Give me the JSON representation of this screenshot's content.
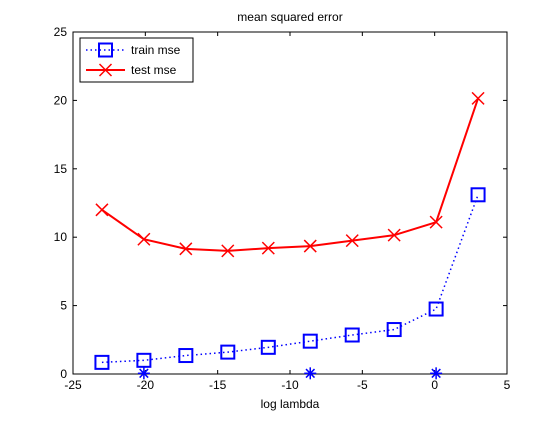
{
  "chart_data": {
    "type": "line",
    "title": "mean squared error",
    "xlabel": "log lambda",
    "ylabel": "",
    "xlim": [
      -25,
      5
    ],
    "ylim": [
      0,
      25
    ],
    "xticks": [
      -25,
      -20,
      -15,
      -10,
      -5,
      0,
      5
    ],
    "yticks": [
      0,
      5,
      10,
      15,
      20,
      25
    ],
    "xtick_labels": [
      "-25",
      "-20",
      "-15",
      "-10",
      "-5",
      "0",
      "5"
    ],
    "ytick_labels": [
      "0",
      "5",
      "10",
      "15",
      "20",
      "25"
    ],
    "grid": false,
    "legend": "top-left",
    "series": [
      {
        "name": "train mse",
        "color": "#0000ff",
        "line_style": "dotted",
        "marker": "square",
        "x": [
          -23.0,
          -20.1,
          -17.2,
          -14.3,
          -11.5,
          -8.6,
          -5.7,
          -2.8,
          0.1,
          3.0
        ],
        "y": [
          0.85,
          1.0,
          1.35,
          1.6,
          1.95,
          2.4,
          2.85,
          3.25,
          4.75,
          13.1
        ]
      },
      {
        "name": "test mse",
        "color": "#ff0000",
        "line_style": "solid",
        "marker": "x",
        "x": [
          -23.0,
          -20.1,
          -17.2,
          -14.3,
          -11.5,
          -8.6,
          -5.7,
          -2.8,
          0.1,
          3.0
        ],
        "y": [
          12.0,
          9.85,
          9.15,
          9.0,
          9.2,
          9.35,
          9.75,
          10.15,
          11.1,
          20.15
        ]
      }
    ],
    "extra_points": {
      "color": "#0000ff",
      "marker": "asterisk",
      "x": [
        -20.1,
        -8.6,
        0.1
      ],
      "y": [
        0.05,
        0.05,
        0.05
      ]
    }
  }
}
